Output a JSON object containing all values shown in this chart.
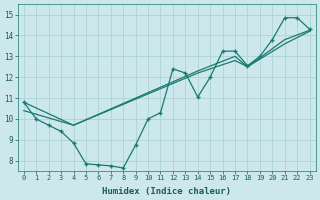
{
  "xlabel": "Humidex (Indice chaleur)",
  "xlim": [
    -0.5,
    23.5
  ],
  "ylim": [
    7.5,
    15.5
  ],
  "yticks": [
    8,
    9,
    10,
    11,
    12,
    13,
    14,
    15
  ],
  "xticks": [
    0,
    1,
    2,
    3,
    4,
    5,
    6,
    7,
    8,
    9,
    10,
    11,
    12,
    13,
    14,
    15,
    16,
    17,
    18,
    19,
    20,
    21,
    22,
    23
  ],
  "bg_color": "#cde8ed",
  "grid_color": "#b0d5db",
  "line_color": "#1a7a6e",
  "zigzag_x": [
    0,
    1,
    2,
    3,
    4,
    5,
    6,
    7,
    8,
    9,
    10,
    11,
    12,
    13,
    14,
    15,
    16,
    17,
    18,
    19,
    20,
    21,
    22,
    23
  ],
  "zigzag_y": [
    10.8,
    10.0,
    9.7,
    9.4,
    8.85,
    7.85,
    7.8,
    7.75,
    7.65,
    8.75,
    10.0,
    10.3,
    12.4,
    12.2,
    11.05,
    12.0,
    13.25,
    13.25,
    12.55,
    13.0,
    13.8,
    14.85,
    14.85,
    14.3
  ],
  "diag1_x": [
    0,
    4,
    14,
    17,
    18,
    21,
    23
  ],
  "diag1_y": [
    10.8,
    9.7,
    12.3,
    13.0,
    12.5,
    13.8,
    14.25
  ],
  "diag2_x": [
    0,
    4,
    14,
    17,
    18,
    21,
    23
  ],
  "diag2_y": [
    10.4,
    9.7,
    12.2,
    12.8,
    12.5,
    13.6,
    14.2
  ]
}
